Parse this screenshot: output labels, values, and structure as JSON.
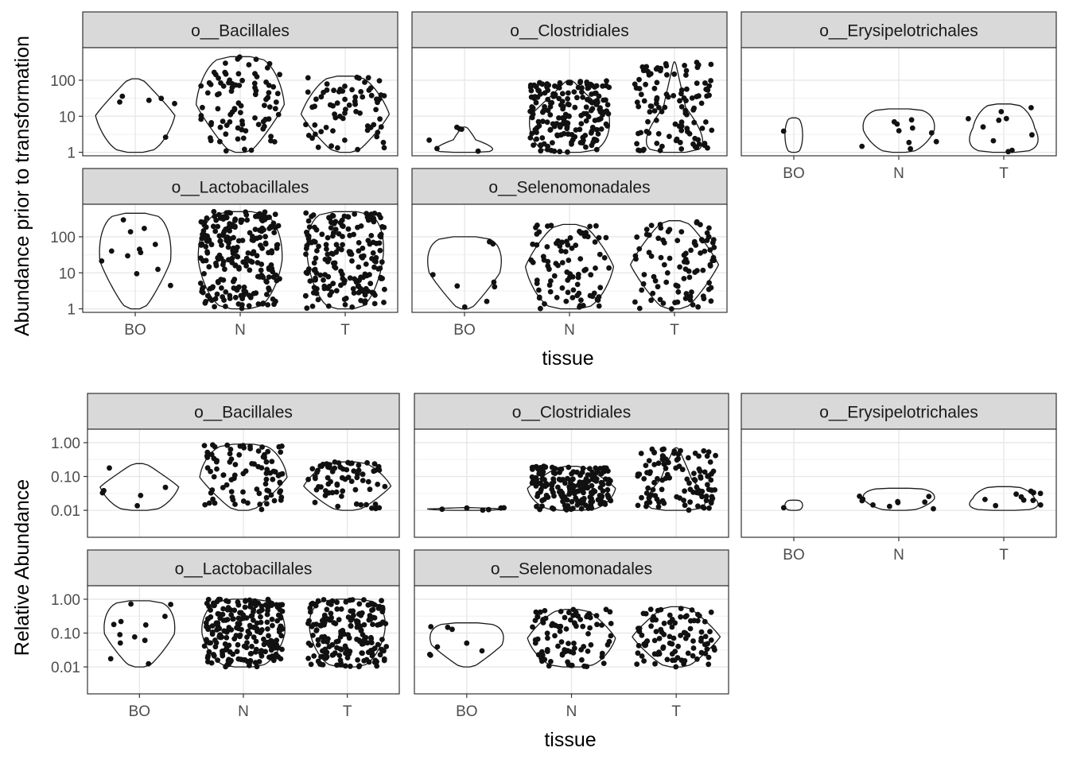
{
  "chart_data": [
    {
      "type": "violin-jitter",
      "ylabel": "Abundance prior to transformation",
      "xlabel": "tissue",
      "y_scale": "log10",
      "y_ticks": [
        1,
        10,
        100
      ],
      "y_tick_labels": [
        "1",
        "10",
        "100"
      ],
      "ylim": [
        0.8,
        800
      ],
      "categories": [
        "BO",
        "N",
        "T"
      ],
      "facets": [
        {
          "name": "o__Bacillales",
          "max": [
            110,
            450,
            130
          ],
          "count": [
            6,
            90,
            70
          ],
          "dens": [
            [
              0.7,
              0.9,
              0.3
            ],
            [
              0.45,
              1.0,
              0.9
            ],
            [
              0.5,
              1.0,
              0.7
            ]
          ]
        },
        {
          "name": "o__Clostridiales",
          "max": [
            5,
            100,
            320
          ],
          "count": [
            6,
            190,
            110
          ],
          "dens": [
            [
              1.0,
              0.25,
              0.1
            ],
            [
              1.0,
              0.9,
              0.15
            ],
            [
              1.0,
              0.25,
              0.05
            ]
          ]
        },
        {
          "name": "o__Erysipelotrichales",
          "max": [
            9,
            16,
            22
          ],
          "count": [
            1,
            10,
            10
          ],
          "dens": [
            [
              0.2,
              0.2,
              0.2
            ],
            [
              0.6,
              0.8,
              0.9
            ],
            [
              1.0,
              0.7,
              0.6
            ]
          ]
        },
        {
          "name": "o__Lactobacillales",
          "max": [
            450,
            500,
            500
          ],
          "count": [
            12,
            230,
            190
          ],
          "dens": [
            [
              0.4,
              0.8,
              0.9
            ],
            [
              0.8,
              0.95,
              1.0
            ],
            [
              0.7,
              0.85,
              1.0
            ]
          ]
        },
        {
          "name": "o__Selenomonadales",
          "max": [
            100,
            220,
            280
          ],
          "count": [
            8,
            90,
            95
          ],
          "dens": [
            [
              0.3,
              0.8,
              1.0
            ],
            [
              0.8,
              1.0,
              0.6
            ],
            [
              0.5,
              1.0,
              0.5
            ]
          ]
        }
      ]
    },
    {
      "type": "violin-jitter",
      "ylabel": "Relative Abundance",
      "xlabel": "tissue",
      "y_scale": "log10",
      "y_ticks": [
        0.01,
        0.1,
        1
      ],
      "y_tick_labels": [
        "0.01",
        "0.10",
        "1.00"
      ],
      "ylim": [
        0.0016,
        2.5
      ],
      "categories": [
        "BO",
        "N",
        "T"
      ],
      "facets": [
        {
          "name": "o__Bacillales",
          "max": [
            0.24,
            0.9,
            0.27
          ],
          "count": [
            6,
            90,
            70
          ],
          "dens": [
            [
              0.7,
              0.9,
              0.3
            ],
            [
              0.45,
              1.0,
              0.9
            ],
            [
              0.5,
              1.0,
              0.7
            ]
          ]
        },
        {
          "name": "o__Clostridiales",
          "max": [
            0.012,
            0.2,
            0.7
          ],
          "count": [
            6,
            190,
            110
          ],
          "dens": [
            [
              0.7,
              0.9,
              0.3
            ],
            [
              0.9,
              1.0,
              0.5
            ],
            [
              1.0,
              0.35,
              0.1
            ]
          ]
        },
        {
          "name": "o__Erysipelotrichales",
          "max": [
            0.02,
            0.045,
            0.05
          ],
          "count": [
            1,
            10,
            10
          ],
          "dens": [
            [
              0.2,
              0.2,
              0.2
            ],
            [
              0.6,
              0.8,
              0.9
            ],
            [
              1.0,
              0.7,
              0.6
            ]
          ]
        },
        {
          "name": "o__Lactobacillales",
          "max": [
            0.9,
            1.0,
            1.0
          ],
          "count": [
            12,
            230,
            190
          ],
          "dens": [
            [
              0.4,
              0.8,
              0.9
            ],
            [
              0.8,
              0.95,
              1.0
            ],
            [
              0.7,
              0.85,
              1.0
            ]
          ]
        },
        {
          "name": "o__Selenomonadales",
          "max": [
            0.2,
            0.5,
            0.6
          ],
          "count": [
            8,
            90,
            95
          ],
          "dens": [
            [
              0.3,
              0.8,
              1.0
            ],
            [
              0.8,
              1.0,
              0.6
            ],
            [
              0.5,
              1.0,
              0.5
            ]
          ]
        }
      ]
    }
  ]
}
